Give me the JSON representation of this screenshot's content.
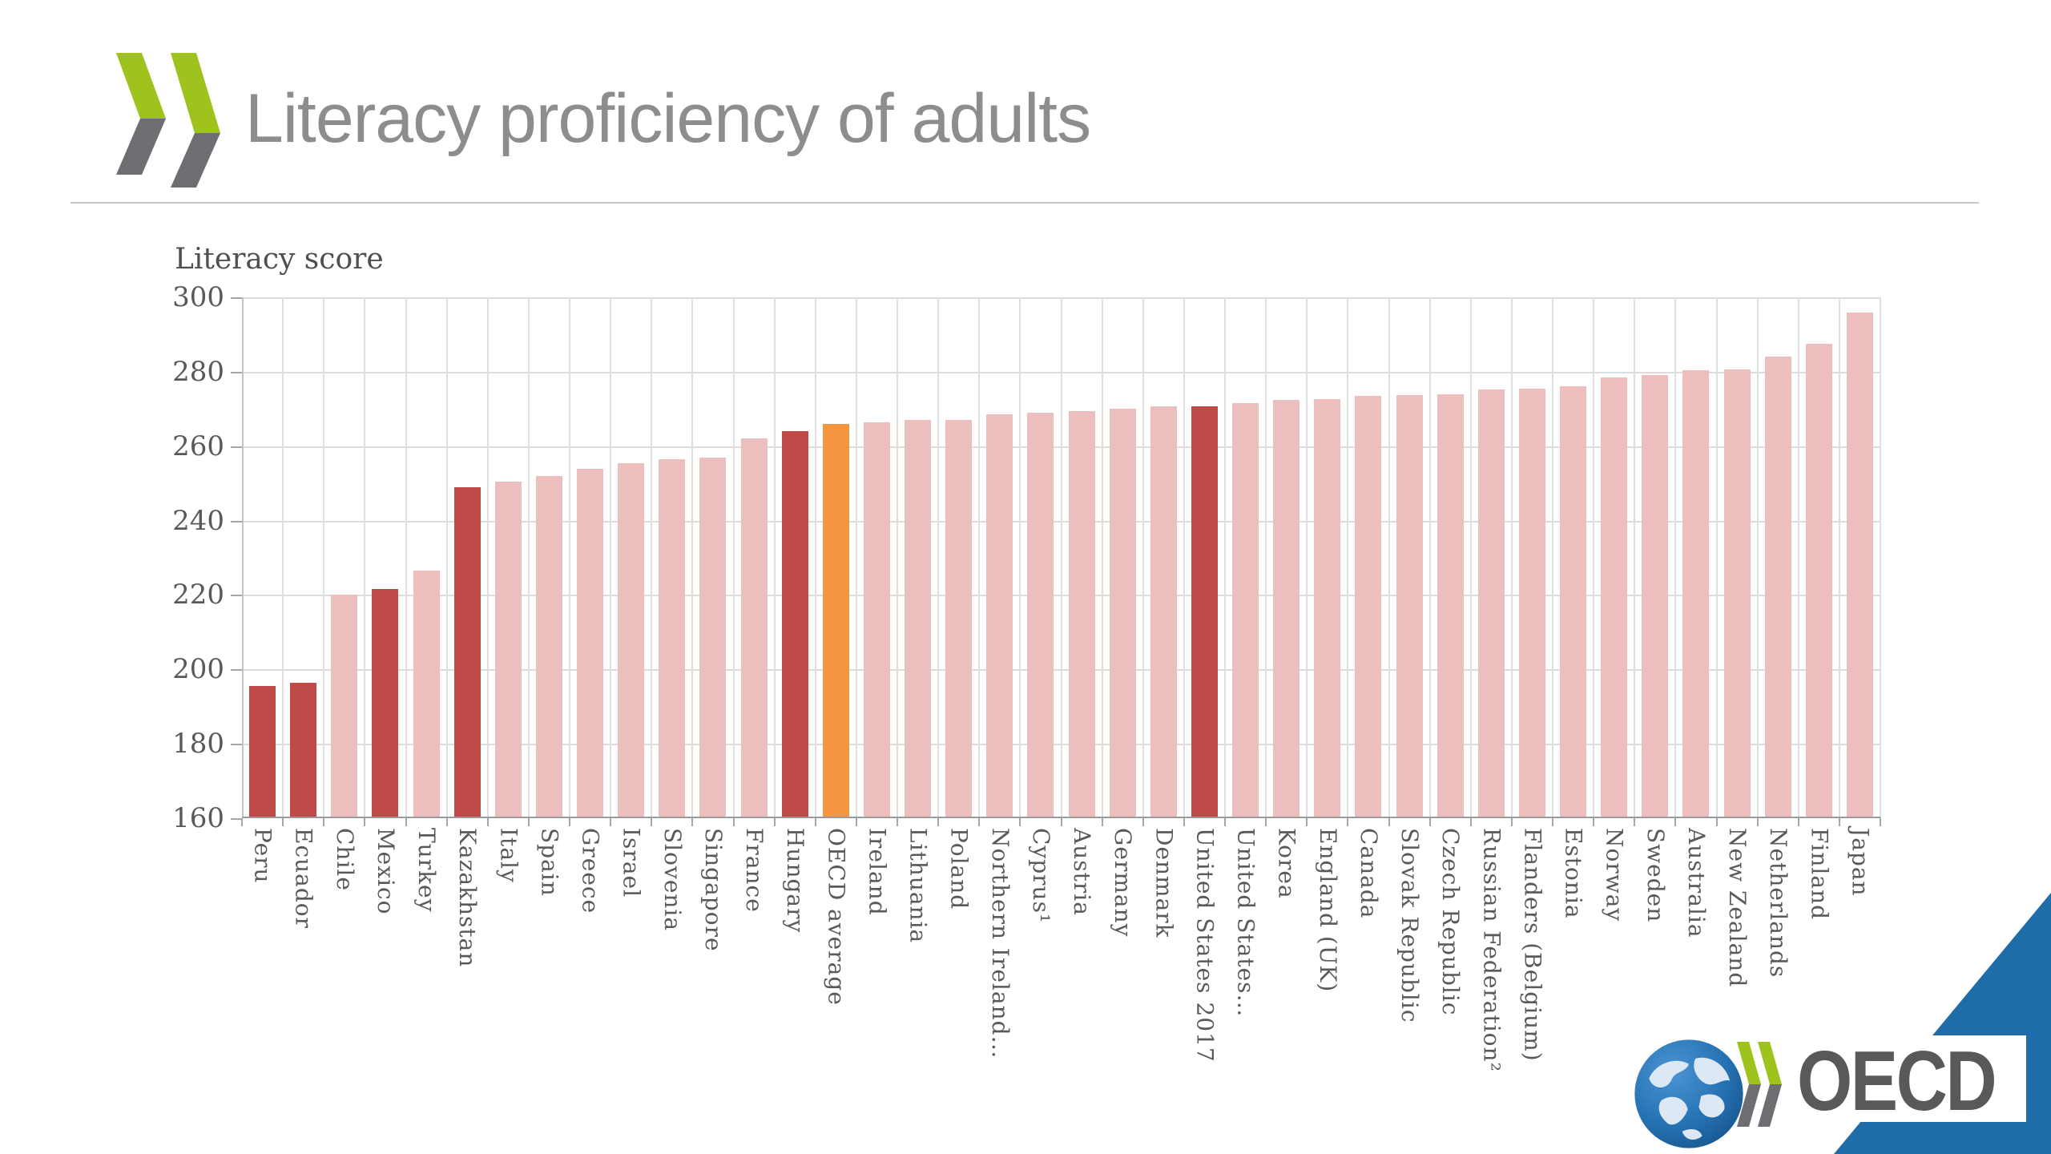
{
  "slide": {
    "title": "Literacy proficiency of adults",
    "footer_wordmark": "OECD"
  },
  "chart_data": {
    "type": "bar",
    "title": "",
    "ylabel": "Literacy score",
    "xlabel": "",
    "ylim": [
      160,
      300
    ],
    "yticks": [
      300,
      280,
      260,
      240,
      220,
      200,
      180,
      160
    ],
    "grid": true,
    "legend": "none",
    "categories": [
      "Peru",
      "Ecuador",
      "Chile",
      "Mexico",
      "Turkey",
      "Kazakhstan",
      "Italy",
      "Spain",
      "Greece",
      "Israel",
      "Slovenia",
      "Singapore",
      "France",
      "Hungary",
      "OECD average",
      "Ireland",
      "Lithuania",
      "Poland",
      "Northern Ireland…",
      "Cyprus¹",
      "Austria",
      "Germany",
      "Denmark",
      "United States 2017",
      "United States…",
      "Korea",
      "England (UK)",
      "Canada",
      "Slovak Republic",
      "Czech Republic",
      "Russian Federation²",
      "Flanders (Belgium)",
      "Estonia",
      "Norway",
      "Sweden",
      "Australia",
      "New Zealand",
      "Netherlands",
      "Finland",
      "Japan"
    ],
    "values": [
      195.5,
      196.5,
      220,
      221.5,
      226.5,
      249,
      250.5,
      252,
      254,
      255.5,
      256.5,
      257,
      262,
      264,
      266,
      266.5,
      267,
      267,
      268.5,
      269,
      269.5,
      270,
      270.8,
      270.8,
      271.6,
      272.4,
      272.6,
      273.5,
      273.8,
      274,
      275.2,
      275.5,
      276,
      278.4,
      279.2,
      280.4,
      280.7,
      284,
      287.5,
      296
    ],
    "highlight_categories": [
      "Peru",
      "Ecuador",
      "Mexico",
      "Kazakhstan",
      "Hungary",
      "United States 2017"
    ],
    "average_categories": [
      "OECD average"
    ]
  },
  "colors": {
    "bar_default": "#ecbebe",
    "bar_highlight": "#bf4a47",
    "bar_average": "#f5953f",
    "corner_blue": "#1e6ca8",
    "logo_green": "#9dc31c",
    "logo_gray": "#6d6e71",
    "title_gray": "#8b8d8f",
    "axis_text": "#595959",
    "gridline": "#dcdcdc"
  }
}
